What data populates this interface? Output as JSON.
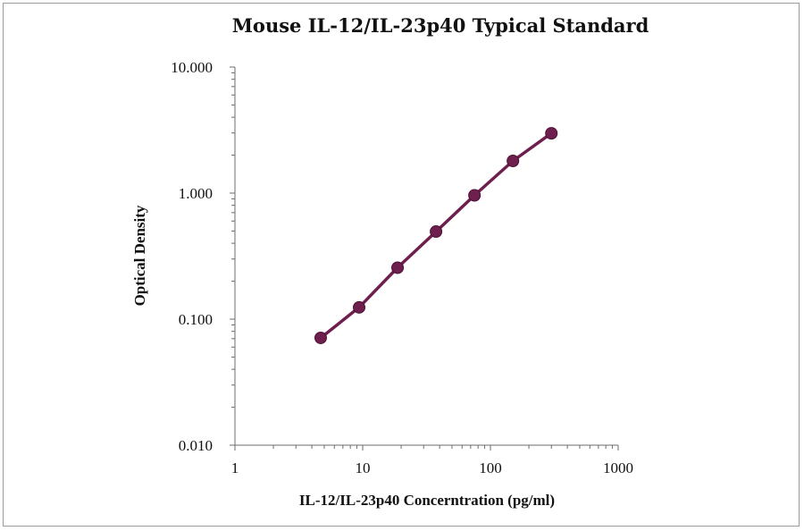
{
  "chart_data": {
    "type": "scatter",
    "title": "Mouse IL-12/IL-23p40 Typical Standard",
    "xlabel": "IL-12/IL-23p40 Concerntration (pg/ml)",
    "ylabel": "Optical Density",
    "x_scale": "log",
    "y_scale": "log",
    "xlim": [
      1,
      1000
    ],
    "ylim": [
      0.01,
      10
    ],
    "x_ticks": [
      "1",
      "10",
      "100",
      "1000"
    ],
    "y_ticks": [
      "0.010",
      "0.100",
      "1.000",
      "10.000"
    ],
    "grid": false,
    "legend": "none",
    "series": [
      {
        "color": "#6e1f4e",
        "x": [
          4.69,
          9.38,
          18.75,
          37.5,
          75,
          150,
          300
        ],
        "y": [
          0.071,
          0.124,
          0.256,
          0.495,
          0.96,
          1.8,
          2.98
        ],
        "fit_line": true
      }
    ]
  }
}
